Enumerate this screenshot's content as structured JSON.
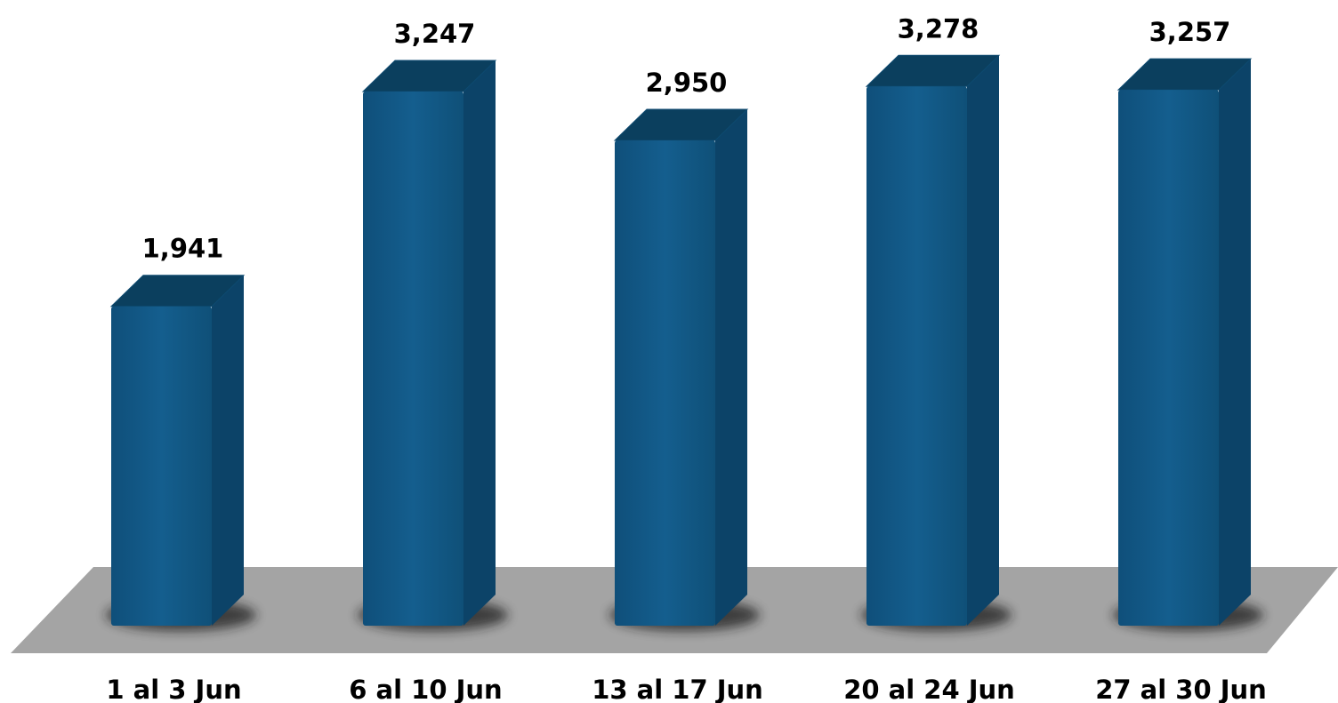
{
  "chart_data": {
    "type": "bar",
    "style": "3d-columns",
    "categories": [
      "1 al 3 Jun",
      "6 al 10 Jun",
      "13 al 17 Jun",
      "20 al 24 Jun",
      "27 al 30 Jun"
    ],
    "values": [
      1941,
      3247,
      2950,
      3278,
      3257
    ],
    "value_labels": [
      "1,941",
      "3,247",
      "2,950",
      "3,278",
      "3,257"
    ],
    "title": "",
    "xlabel": "",
    "ylabel": "",
    "ylim": [
      0,
      3400
    ],
    "grid": false,
    "legend": "none"
  },
  "colors": {
    "bar_front": "#125987",
    "bar_side": "#0c4368",
    "bar_top": "#0b3f5e",
    "floor": "#a4a4a4",
    "text": "#000000"
  }
}
